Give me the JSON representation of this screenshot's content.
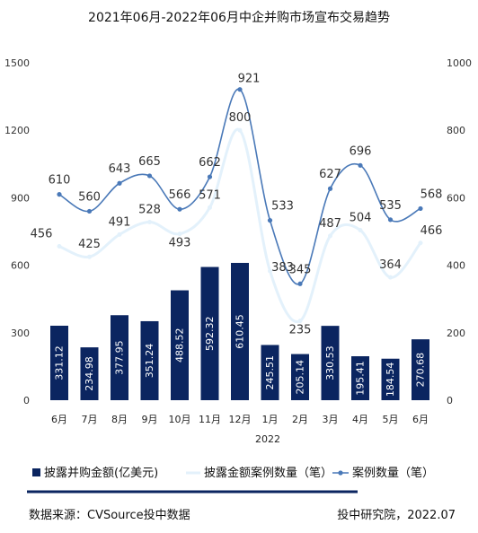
{
  "chart_data": {
    "type": "bar",
    "title": "2021年06月-2022年06月中企并购市场宣布交易趋势",
    "categories": [
      "6月",
      "7月",
      "8月",
      "9月",
      "10月",
      "11月",
      "12月",
      "1月",
      "2月",
      "3月",
      "4月",
      "5月",
      "6月"
    ],
    "year_label": "2022",
    "y_left": {
      "ticks": [
        "0",
        "300",
        "600",
        "900",
        "1200",
        "1500"
      ],
      "ylim": [
        0,
        1500
      ]
    },
    "y_right": {
      "ticks": [
        "0",
        "200",
        "400",
        "600",
        "800",
        "1000"
      ],
      "ylim": [
        0,
        1000
      ]
    },
    "series": [
      {
        "name": "披露并购金额(亿美元)",
        "type": "bar",
        "axis": "left",
        "color": "#0b2560",
        "values": [
          331.12,
          234.98,
          377.95,
          351.24,
          488.52,
          592.32,
          610.45,
          245.51,
          205.14,
          330.53,
          195.41,
          184.54,
          270.68
        ],
        "labels": [
          "331.12",
          "234.98",
          "377.95",
          "351.24",
          "488.52",
          "592.32",
          "610.45",
          "245.51",
          "205.14",
          "330.53",
          "195.41",
          "184.54",
          "270.68"
        ]
      },
      {
        "name": "披露金额案例数量（笔）",
        "type": "line",
        "axis": "right",
        "color": "#e3f1fb",
        "values": [
          456,
          425,
          491,
          528,
          493,
          571,
          800,
          383,
          235,
          487,
          504,
          364,
          466
        ],
        "labels": [
          "456",
          "425",
          "491",
          "528",
          "493",
          "571",
          "800",
          "383",
          "235",
          "487",
          "504",
          "364",
          "466"
        ]
      },
      {
        "name": "案例数量（笔）",
        "type": "line",
        "axis": "right",
        "color": "#4a79b8",
        "values": [
          610,
          560,
          643,
          665,
          566,
          662,
          921,
          533,
          345,
          627,
          696,
          535,
          568
        ],
        "labels": [
          "610",
          "560",
          "643",
          "665",
          "566",
          "662",
          "921",
          "533",
          "345",
          "627",
          "696",
          "535",
          "568"
        ]
      }
    ],
    "grid": false,
    "legend_position": "bottom"
  },
  "footer": {
    "source": "数据来源：CVSource投中数据",
    "credit": "投中研究院，2022.07"
  }
}
